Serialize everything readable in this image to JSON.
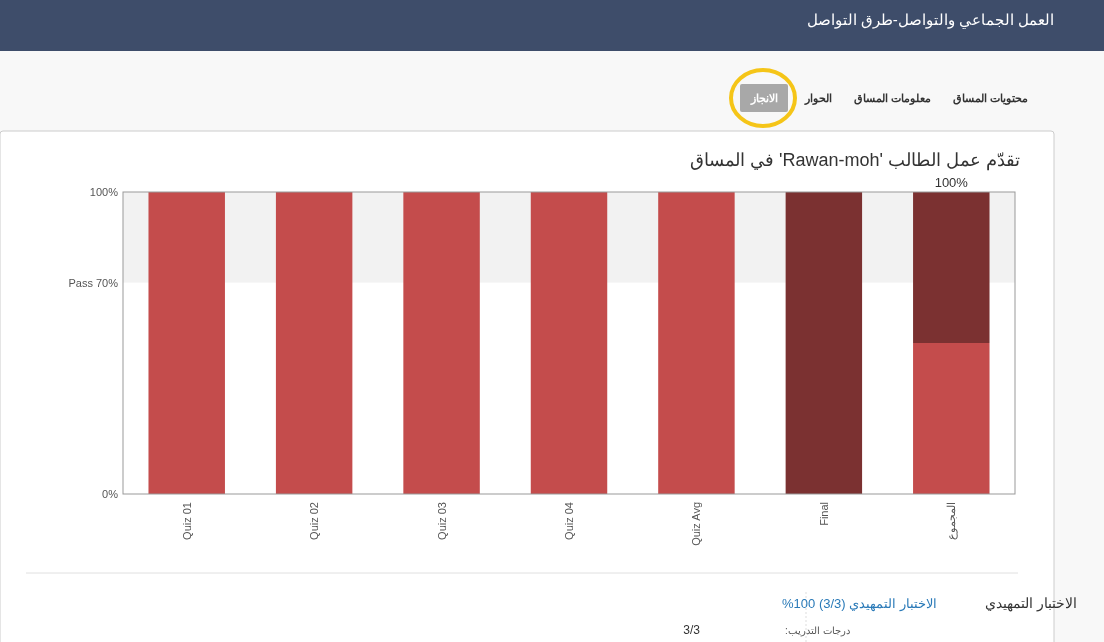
{
  "chart_data": {
    "type": "bar",
    "title": "تقدّم عمل الطالب 'Rawan-moh' في المساق",
    "categories": [
      "Quiz 01",
      "Quiz 02",
      "Quiz 03",
      "Quiz 04",
      "Quiz Avg",
      "Final",
      "المجموع"
    ],
    "stacked": true,
    "series": [
      {
        "color": "#c44c4c",
        "values": [
          100,
          100,
          100,
          100,
          100,
          null,
          50
        ]
      },
      {
        "color": "#7b3131",
        "values": [
          null,
          null,
          null,
          null,
          null,
          100,
          50
        ]
      }
    ],
    "totals": [
      null,
      null,
      null,
      null,
      null,
      null,
      "100%"
    ],
    "ylim": [
      0,
      100
    ],
    "yticks": [
      {
        "value": 0,
        "label": "0%"
      },
      {
        "value": 70,
        "label": "Pass 70%"
      },
      {
        "value": 100,
        "label": "100%"
      }
    ],
    "bands": [
      {
        "axis": "y",
        "from": 70,
        "to": 100,
        "color": "#f2f2f2"
      }
    ],
    "grid": false,
    "annotations": [
      "العمل الجماعي والتواصل-طرق التواصل",
      "محتويات المساق",
      "معلومات المساق",
      "الحوار",
      "الانجاز",
      "الاختبار التمهيدي",
      "الاختبار التمهيدي (3/3) 100%",
      "درجات التدريب:",
      "3/3"
    ]
  }
}
